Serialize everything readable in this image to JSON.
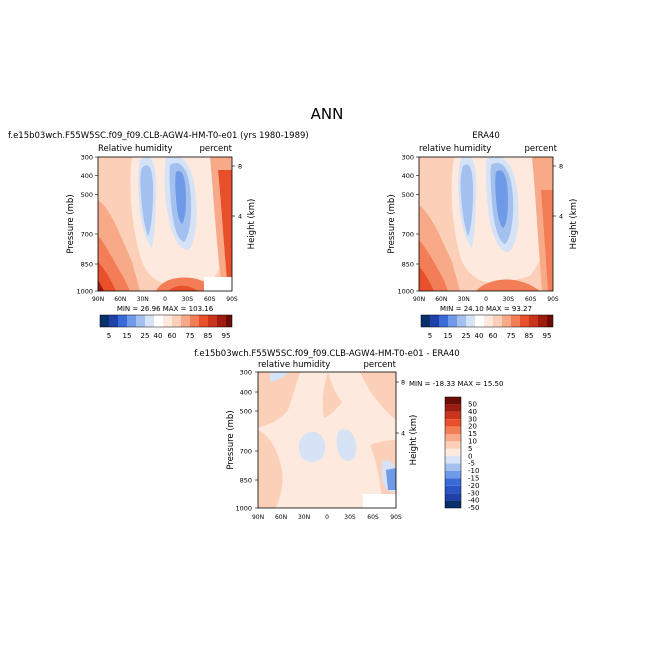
{
  "page_title": "ANN",
  "colors": {
    "bg": "#ffffff",
    "blue_scale": [
      "#08306b",
      "#2140a8",
      "#3a6ad8",
      "#6f9ae8",
      "#a4c0ee",
      "#d6e2f6"
    ],
    "red_scale": [
      "#fde9dd",
      "#fcd0b8",
      "#f8a987",
      "#f37d57",
      "#e8502c",
      "#c9341b",
      "#9e1b0f",
      "#6b0d05"
    ]
  },
  "chart_data": [
    {
      "type": "heatmap",
      "id": "model",
      "title": "f.e15b03wch.F55W5SC.f09_f09.CLB-AGW4-HM-T0-e01 (yrs 1980-1989)",
      "left_label": "Relative humidity",
      "right_label": "percent",
      "ylabel": "Pressure (mb)",
      "y2label": "Height (km)",
      "xtick_labels": [
        "90N",
        "60N",
        "30N",
        "0",
        "30S",
        "60S",
        "90S"
      ],
      "ytick_labels": [
        "300",
        "400",
        "500",
        "700",
        "850",
        "1000"
      ],
      "y2tick_labels": [
        "8",
        "4"
      ],
      "min_max_text": "MIN =  26.96   MAX = 103.16",
      "colorbar_labels": [
        "5",
        "15",
        "25",
        "40",
        "60",
        "75",
        "85",
        "95"
      ]
    },
    {
      "type": "heatmap",
      "id": "obs",
      "title": "ERA40",
      "left_label": "relative humidity",
      "right_label": "percent",
      "ylabel": "Pressure (mb)",
      "y2label": "Height (km)",
      "xtick_labels": [
        "90N",
        "60N",
        "30N",
        "0",
        "30S",
        "60S",
        "90S"
      ],
      "ytick_labels": [
        "300",
        "400",
        "500",
        "700",
        "850",
        "1000"
      ],
      "y2tick_labels": [
        "8",
        "4"
      ],
      "min_max_text": "MIN =  24.10   MAX =  93.27",
      "colorbar_labels": [
        "5",
        "15",
        "25",
        "40",
        "60",
        "75",
        "85",
        "95"
      ]
    },
    {
      "type": "heatmap",
      "id": "diff",
      "title": "f.e15b03wch.F55W5SC.f09_f09.CLB-AGW4-HM-T0-e01 - ERA40",
      "left_label": "relative humidity",
      "right_label": "percent",
      "ylabel": "Pressure (mb)",
      "y2label": "Height (km)",
      "xtick_labels": [
        "90N",
        "60N",
        "30N",
        "0",
        "30S",
        "60S",
        "90S"
      ],
      "ytick_labels": [
        "300",
        "400",
        "500",
        "700",
        "850",
        "1000"
      ],
      "y2tick_labels": [
        "8",
        "4"
      ],
      "min_max_text": "MIN = -18.33   MAX =  15.50",
      "colorbar_labels": [
        "50",
        "40",
        "30",
        "20",
        "15",
        "10",
        "5",
        "0",
        "-5",
        "-10",
        "-15",
        "-20",
        "-30",
        "-40",
        "-50"
      ]
    }
  ]
}
